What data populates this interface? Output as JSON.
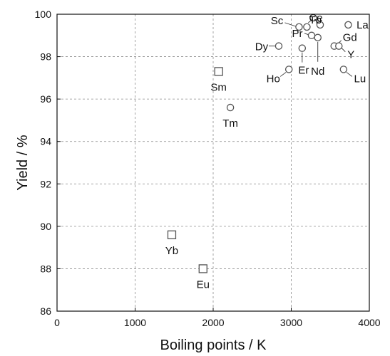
{
  "chart_data": {
    "type": "scatter",
    "title": "",
    "xlabel": "Boiling points / K",
    "ylabel": "Yield / %",
    "xlim": [
      0,
      4000
    ],
    "ylim": [
      86,
      100
    ],
    "xticks": [
      0,
      1000,
      2000,
      3000,
      4000
    ],
    "yticks": [
      86,
      88,
      90,
      92,
      94,
      96,
      98,
      100
    ],
    "grid": true,
    "legend": "none",
    "marker_color": "#555555",
    "points": [
      {
        "label": "Sc",
        "x": 3100,
        "y": 99.4,
        "marker": "circle"
      },
      {
        "label": "Tb",
        "x": 3200,
        "y": 99.4,
        "marker": "circle"
      },
      {
        "label": "Ce",
        "x": 3370,
        "y": 99.5,
        "marker": "circle"
      },
      {
        "label": "La",
        "x": 3730,
        "y": 99.5,
        "marker": "circle"
      },
      {
        "label": "Pr",
        "x": 3260,
        "y": 99.0,
        "marker": "circle"
      },
      {
        "label": "Nd",
        "x": 3340,
        "y": 98.9,
        "marker": "circle"
      },
      {
        "label": "Dy",
        "x": 2840,
        "y": 98.5,
        "marker": "circle"
      },
      {
        "label": "Er",
        "x": 3140,
        "y": 98.4,
        "marker": "circle"
      },
      {
        "label": "Gd",
        "x": 3550,
        "y": 98.5,
        "marker": "circle"
      },
      {
        "label": "Y",
        "x": 3610,
        "y": 98.5,
        "marker": "circle"
      },
      {
        "label": "Ho",
        "x": 2970,
        "y": 97.4,
        "marker": "circle"
      },
      {
        "label": "Lu",
        "x": 3670,
        "y": 97.4,
        "marker": "circle"
      },
      {
        "label": "Tm",
        "x": 2220,
        "y": 95.6,
        "marker": "circle"
      },
      {
        "label": "Sm",
        "x": 2070,
        "y": 97.3,
        "marker": "square"
      },
      {
        "label": "Yb",
        "x": 1470,
        "y": 89.6,
        "marker": "square"
      },
      {
        "label": "Eu",
        "x": 1870,
        "y": 88.0,
        "marker": "square"
      }
    ]
  }
}
